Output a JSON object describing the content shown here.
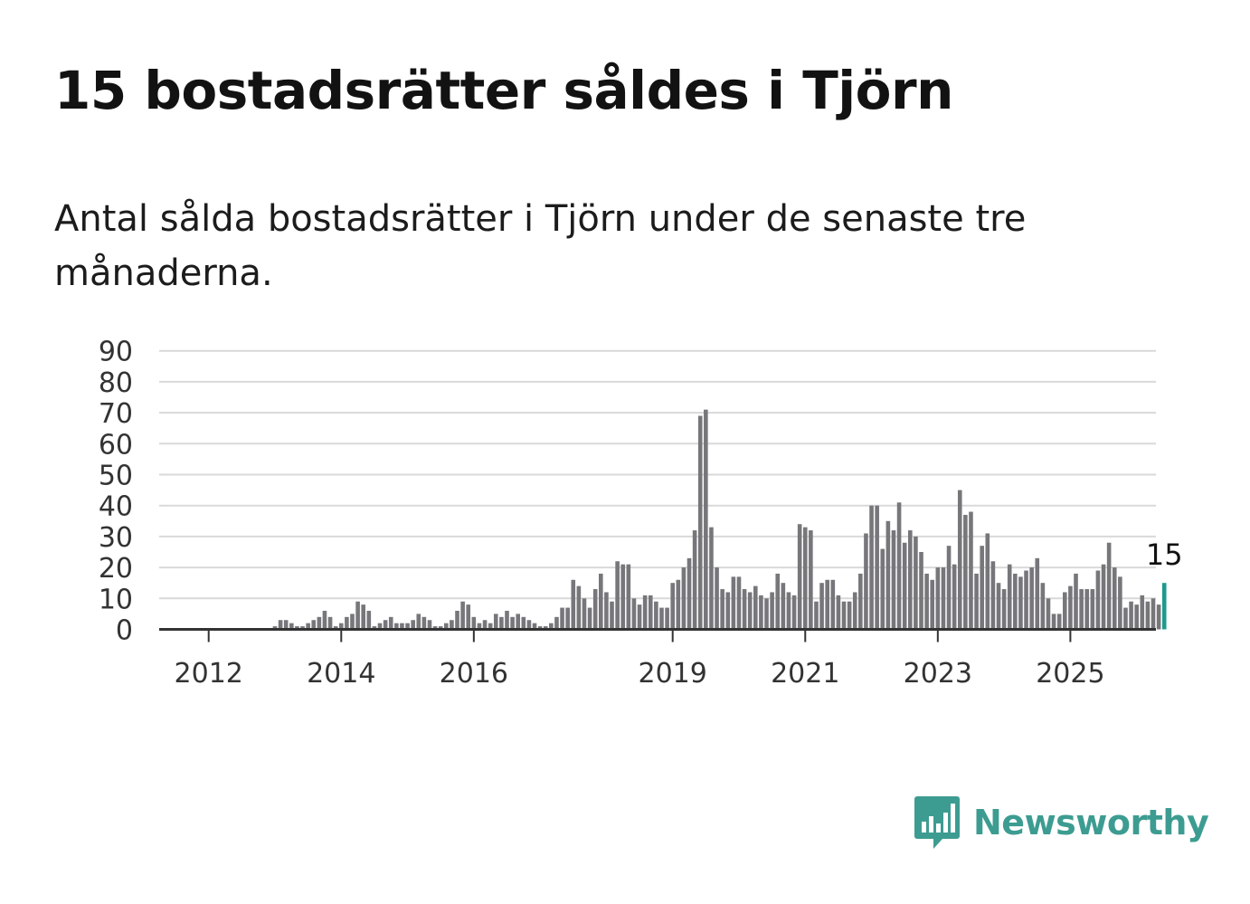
{
  "title": "15 bostadsrätter såldes i Tjörn",
  "subtitle": "Antal sålda bostadsrätter i Tjörn under de senaste tre månaderna.",
  "brand": {
    "name": "Newsworthy",
    "icon": "newsworthy-logo-icon",
    "color": "#3d9c91"
  },
  "chart_data": {
    "type": "bar",
    "start": "2011-12",
    "x_ticks": [
      "2012",
      "2014",
      "2016",
      "2019",
      "2021",
      "2023",
      "2025"
    ],
    "y_ticks": [
      0,
      10,
      20,
      30,
      40,
      50,
      60,
      70,
      80,
      90
    ],
    "ylim": [
      0,
      90
    ],
    "grid": true,
    "bar_color": "#77767a",
    "highlight_color": "#1d9a8f",
    "highlight_label": "15",
    "values": [
      0,
      0,
      0,
      0,
      0,
      0,
      0,
      0,
      0,
      0,
      0,
      0,
      0,
      1,
      3,
      3,
      2,
      1,
      1,
      2,
      3,
      4,
      6,
      4,
      1,
      2,
      4,
      5,
      9,
      8,
      6,
      1,
      2,
      3,
      4,
      2,
      2,
      2,
      3,
      5,
      4,
      3,
      1,
      1,
      2,
      3,
      6,
      9,
      8,
      4,
      2,
      3,
      2,
      5,
      4,
      6,
      4,
      5,
      4,
      3,
      2,
      1,
      1,
      2,
      4,
      7,
      7,
      16,
      14,
      10,
      7,
      13,
      18,
      12,
      9,
      22,
      21,
      21,
      10,
      8,
      11,
      11,
      9,
      7,
      7,
      15,
      16,
      20,
      23,
      32,
      69,
      71,
      33,
      20,
      13,
      12,
      17,
      17,
      13,
      12,
      14,
      11,
      10,
      12,
      18,
      15,
      12,
      11,
      34,
      33,
      32,
      9,
      15,
      16,
      16,
      11,
      9,
      9,
      12,
      18,
      31,
      40,
      40,
      26,
      35,
      32,
      41,
      28,
      32,
      30,
      25,
      18,
      16,
      20,
      20,
      27,
      21,
      45,
      37,
      38,
      18,
      27,
      31,
      22,
      15,
      13,
      21,
      18,
      17,
      19,
      20,
      23,
      15,
      10,
      5,
      5,
      12,
      14,
      18,
      13,
      13,
      13,
      19,
      21,
      28,
      20,
      17,
      7,
      9,
      8,
      11,
      9,
      10,
      8,
      15
    ]
  }
}
